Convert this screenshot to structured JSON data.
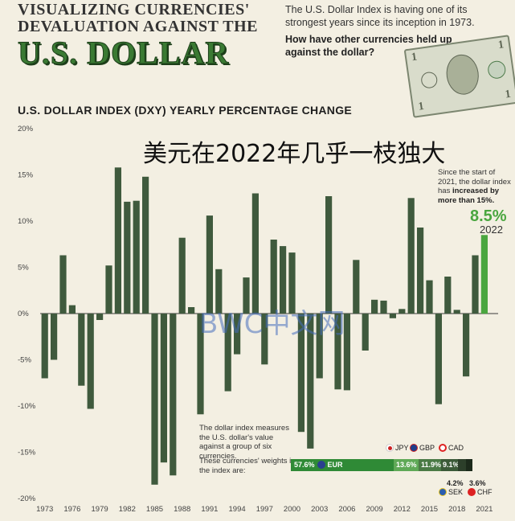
{
  "header": {
    "title_line1": "VISUALIZING CURRENCIES'",
    "title_line2": "DEVALUATION AGAINST THE",
    "title_line3": "U.S. DOLLAR",
    "intro": "The U.S. Dollar Index is having one of its strongest years since its inception in 1973.",
    "question": "How have other currencies held up against the dollar?"
  },
  "overlay_text": "美元在2022年几乎一枝独大",
  "watermark_text": "BWC中文网",
  "note_2021": {
    "text": "Since the start of 2021, the dollar index has ",
    "bold": "increased by more than 15%.",
    "value": "8.5%",
    "year": "2022"
  },
  "index_note": {
    "line1": "The dollar index measures the U.S. dollar's value against a group of six currencies.",
    "line2": "These currencies' weights in the index are:"
  },
  "weights": [
    {
      "code": "EUR",
      "value": 57.6,
      "label": "57.6%",
      "color": "#2f8a36"
    },
    {
      "code": "JPY",
      "value": 13.6,
      "label": "13.6%",
      "color": "#5fa957"
    },
    {
      "code": "GBP",
      "value": 11.9,
      "label": "11.9%",
      "color": "#4a7a45"
    },
    {
      "code": "CAD",
      "value": 9.1,
      "label": "9.1%",
      "color": "#3b5a38"
    },
    {
      "code": "SEK",
      "value": 4.2,
      "label": "4.2%",
      "color": "#2c3f2a"
    },
    {
      "code": "CHF",
      "value": 3.6,
      "label": "3.6%",
      "color": "#1c2a1b"
    }
  ],
  "chart_data": {
    "type": "bar",
    "title": "U.S. DOLLAR INDEX (DXY) YEARLY PERCENTAGE CHANGE",
    "ylim": [
      -20,
      20
    ],
    "yticks": [
      "20%",
      "15%",
      "10%",
      "5%",
      "0%",
      "-5%",
      "-10%",
      "-15%",
      "-20%"
    ],
    "ytick_values": [
      20,
      15,
      10,
      5,
      0,
      -5,
      -10,
      -15,
      -20
    ],
    "xtick_labels": [
      "1973",
      "1976",
      "1979",
      "1982",
      "1985",
      "1988",
      "1991",
      "1994",
      "1997",
      "2000",
      "2003",
      "2006",
      "2009",
      "2012",
      "2015",
      "2018",
      "2021"
    ],
    "x": [
      1973,
      1974,
      1975,
      1976,
      1977,
      1978,
      1979,
      1980,
      1981,
      1982,
      1983,
      1984,
      1985,
      1986,
      1987,
      1988,
      1989,
      1990,
      1991,
      1992,
      1993,
      1994,
      1995,
      1996,
      1997,
      1998,
      1999,
      2000,
      2001,
      2002,
      2003,
      2004,
      2005,
      2006,
      2007,
      2008,
      2009,
      2010,
      2011,
      2012,
      2013,
      2014,
      2015,
      2016,
      2017,
      2018,
      2019,
      2020,
      2021,
      2022
    ],
    "values": [
      -7.0,
      -5.0,
      6.3,
      0.9,
      -7.8,
      -10.3,
      -0.7,
      5.2,
      15.8,
      12.1,
      12.2,
      14.8,
      -18.5,
      -16.1,
      -17.5,
      8.2,
      0.7,
      -10.9,
      10.6,
      4.8,
      -8.4,
      -4.4,
      3.9,
      13.0,
      -5.5,
      8.0,
      7.3,
      6.6,
      -12.8,
      -14.6,
      -7.0,
      12.7,
      -8.2,
      -8.3,
      5.8,
      -4.0,
      1.5,
      1.4,
      -0.5,
      0.5,
      12.5,
      9.3,
      3.6,
      -9.8,
      4.0,
      0.4,
      -6.8,
      6.3,
      8.5,
      0
    ],
    "highlight_index": 48,
    "highlight_color": "#4aa63f",
    "bar_color": "#3f5a3d"
  }
}
